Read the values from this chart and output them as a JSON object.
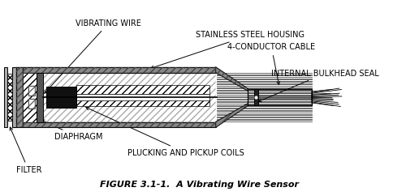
{
  "title": "FIGURE 3.1-1.  A Vibrating Wire Sensor",
  "title_fontsize": 8,
  "title_fontweight": "bold",
  "bg_color": "#ffffff",
  "labels": {
    "vibrating_wire": "VIBRATING WIRE",
    "stainless_steel": "STAINLESS STEEL HOUSING",
    "conductor_cable": "4-CONDUCTOR CABLE",
    "internal_seal": "INTERNAL BULKHEAD SEAL",
    "diaphragm": "DIAPHRAGM",
    "plucking_coils": "PLUCKING AND PICKUP COILS",
    "filter": "FILTER"
  }
}
